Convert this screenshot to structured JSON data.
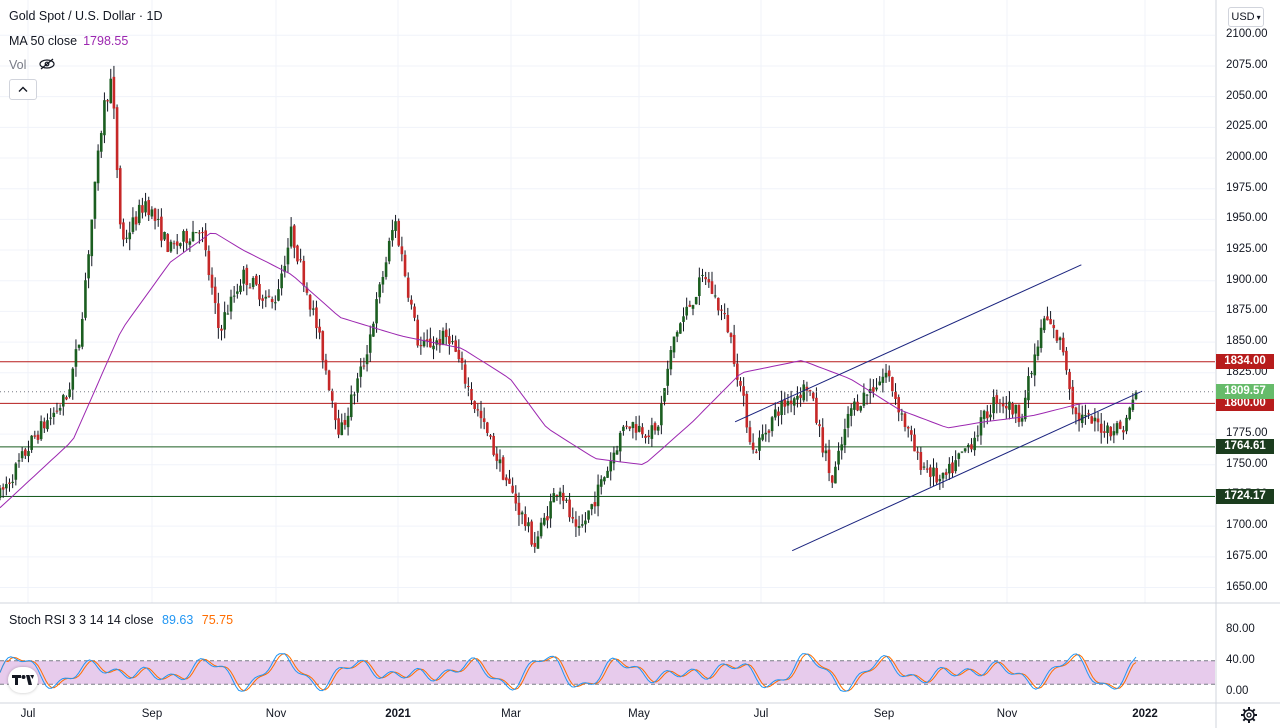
{
  "header": {
    "symbol_title": "Gold Spot / U.S. Dollar · 1D",
    "ma_label": "MA 50 close",
    "ma_value": "1798.55",
    "vol_label": "Vol",
    "currency": "USD"
  },
  "indicator": {
    "label": "Stoch RSI 3 3 14 14 close",
    "k_value": "89.63",
    "d_value": "75.75",
    "levels": [
      "80.00",
      "40.00",
      "0.00"
    ]
  },
  "colors": {
    "up": "#26a69a",
    "candle_up_body": "#1b5e20",
    "candle_down_body": "#c62828",
    "ma": "#9c27b0",
    "resistance": "#b71c1c",
    "support": "#1b5e20",
    "channel": "#1a237e",
    "stoch_k": "#2196f3",
    "stoch_d": "#ff6d00",
    "stoch_band": "#e1bee7",
    "current_price": "#66bb6a"
  },
  "chart_data": {
    "type": "candlestick",
    "title": "Gold Spot / U.S. Dollar · 1D",
    "y_ticks": [
      "2100.00",
      "2075.00",
      "2050.00",
      "2025.00",
      "2000.00",
      "1975.00",
      "1950.00",
      "1925.00",
      "1900.00",
      "1875.00",
      "1850.00",
      "1825.00",
      "1800.00",
      "1775.00",
      "1750.00",
      "1725.00",
      "1700.00",
      "1675.00",
      "1650.00"
    ],
    "ylim": [
      1643,
      2103
    ],
    "x_ticks": [
      {
        "label": "Jul",
        "bold": false
      },
      {
        "label": "Sep",
        "bold": false
      },
      {
        "label": "Nov",
        "bold": false
      },
      {
        "label": "2021",
        "bold": true
      },
      {
        "label": "Mar",
        "bold": false
      },
      {
        "label": "May",
        "bold": false
      },
      {
        "label": "Jul",
        "bold": false
      },
      {
        "label": "Sep",
        "bold": false
      },
      {
        "label": "Nov",
        "bold": false
      },
      {
        "label": "2022",
        "bold": true
      }
    ],
    "horizontal_levels": [
      {
        "value": 1834.0,
        "label": "1834.00",
        "role": "resistance"
      },
      {
        "value": 1800.0,
        "label": "1800.00",
        "role": "resistance"
      },
      {
        "value": 1764.61,
        "label": "1764.61",
        "role": "support"
      },
      {
        "value": 1724.17,
        "label": "1724.17",
        "role": "support"
      }
    ],
    "current_price": {
      "value": 1809.57,
      "label": "1809.57"
    },
    "price_path": [
      {
        "t": 0,
        "v": 1725
      },
      {
        "t": 0.03,
        "v": 1775
      },
      {
        "t": 0.055,
        "v": 1805
      },
      {
        "t": 0.065,
        "v": 1850
      },
      {
        "t": 0.085,
        "v": 2040
      },
      {
        "t": 0.092,
        "v": 2065
      },
      {
        "t": 0.1,
        "v": 1930
      },
      {
        "t": 0.12,
        "v": 1965
      },
      {
        "t": 0.14,
        "v": 1925
      },
      {
        "t": 0.165,
        "v": 1945
      },
      {
        "t": 0.18,
        "v": 1860
      },
      {
        "t": 0.2,
        "v": 1905
      },
      {
        "t": 0.225,
        "v": 1880
      },
      {
        "t": 0.24,
        "v": 1940
      },
      {
        "t": 0.26,
        "v": 1865
      },
      {
        "t": 0.28,
        "v": 1775
      },
      {
        "t": 0.3,
        "v": 1835
      },
      {
        "t": 0.325,
        "v": 1950
      },
      {
        "t": 0.345,
        "v": 1845
      },
      {
        "t": 0.37,
        "v": 1855
      },
      {
        "t": 0.39,
        "v": 1800
      },
      {
        "t": 0.42,
        "v": 1730
      },
      {
        "t": 0.44,
        "v": 1685
      },
      {
        "t": 0.46,
        "v": 1735
      },
      {
        "t": 0.475,
        "v": 1690
      },
      {
        "t": 0.495,
        "v": 1735
      },
      {
        "t": 0.515,
        "v": 1785
      },
      {
        "t": 0.54,
        "v": 1775
      },
      {
        "t": 0.555,
        "v": 1855
      },
      {
        "t": 0.58,
        "v": 1905
      },
      {
        "t": 0.6,
        "v": 1860
      },
      {
        "t": 0.62,
        "v": 1760
      },
      {
        "t": 0.64,
        "v": 1795
      },
      {
        "t": 0.665,
        "v": 1815
      },
      {
        "t": 0.685,
        "v": 1735
      },
      {
        "t": 0.7,
        "v": 1795
      },
      {
        "t": 0.73,
        "v": 1825
      },
      {
        "t": 0.755,
        "v": 1755
      },
      {
        "t": 0.775,
        "v": 1735
      },
      {
        "t": 0.8,
        "v": 1770
      },
      {
        "t": 0.82,
        "v": 1805
      },
      {
        "t": 0.84,
        "v": 1790
      },
      {
        "t": 0.86,
        "v": 1870
      },
      {
        "t": 0.875,
        "v": 1845
      },
      {
        "t": 0.885,
        "v": 1790
      },
      {
        "t": 0.91,
        "v": 1780
      },
      {
        "t": 0.925,
        "v": 1780
      },
      {
        "t": 0.935,
        "v": 1810
      }
    ],
    "ma_path": [
      {
        "t": 0,
        "v": 1715
      },
      {
        "t": 0.06,
        "v": 1770
      },
      {
        "t": 0.1,
        "v": 1860
      },
      {
        "t": 0.14,
        "v": 1915
      },
      {
        "t": 0.175,
        "v": 1940
      },
      {
        "t": 0.2,
        "v": 1925
      },
      {
        "t": 0.24,
        "v": 1905
      },
      {
        "t": 0.28,
        "v": 1870
      },
      {
        "t": 0.33,
        "v": 1855
      },
      {
        "t": 0.38,
        "v": 1845
      },
      {
        "t": 0.42,
        "v": 1820
      },
      {
        "t": 0.45,
        "v": 1780
      },
      {
        "t": 0.49,
        "v": 1755
      },
      {
        "t": 0.53,
        "v": 1750
      },
      {
        "t": 0.57,
        "v": 1785
      },
      {
        "t": 0.61,
        "v": 1825
      },
      {
        "t": 0.66,
        "v": 1835
      },
      {
        "t": 0.7,
        "v": 1820
      },
      {
        "t": 0.74,
        "v": 1795
      },
      {
        "t": 0.78,
        "v": 1780
      },
      {
        "t": 0.81,
        "v": 1785
      },
      {
        "t": 0.85,
        "v": 1790
      },
      {
        "t": 0.89,
        "v": 1800
      },
      {
        "t": 0.935,
        "v": 1800
      }
    ],
    "channel_lines": [
      {
        "from": {
          "t": 0.605,
          "v": 1785
        },
        "to": {
          "t": 0.89,
          "v": 1913
        }
      },
      {
        "from": {
          "t": 0.652,
          "v": 1680
        },
        "to": {
          "t": 0.94,
          "v": 1810
        }
      }
    ],
    "stoch_rsi": {
      "ylim": [
        0,
        100
      ],
      "band": [
        20,
        80
      ],
      "k_last": 89.63,
      "d_last": 75.75
    }
  }
}
